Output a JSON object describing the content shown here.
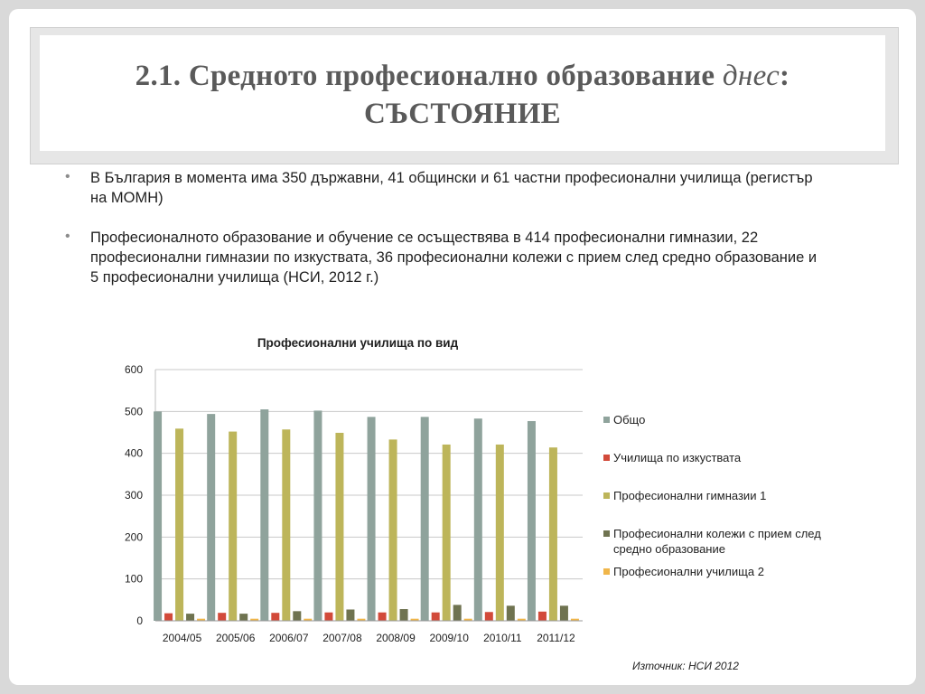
{
  "slide": {
    "title_line1_main": "2.1. Средното професионално образование ",
    "title_line1_em": "днес",
    "title_line1_end": ":",
    "title_line2": "СЪСТОЯНИЕ",
    "bullets": [
      "В България в момента има 350 държавни, 41 общински и 61 частни професионални училища (регистър  на МОМН)",
      "Професионалното образование  и обучение се осъществява в 414 професионални гимназии, 22 професионални гимназии по изкуствата, 36 професионални колежи с прием след средно образование и 5 професионални училища (НСИ, 2012 г.)"
    ],
    "bullet_glyph": "•",
    "source": "Източник: НСИ 2012"
  },
  "chart_data": {
    "type": "bar",
    "title": "Професионални училища по вид",
    "categories": [
      "2004/05",
      "2005/06",
      "2006/07",
      "2007/08",
      "2008/09",
      "2009/10",
      "2010/11",
      "2011/12"
    ],
    "ylim": [
      0,
      600
    ],
    "yticks": [
      0,
      100,
      200,
      300,
      400,
      500,
      600
    ],
    "grid": true,
    "legend_position": "right",
    "series": [
      {
        "name": "Общо",
        "color": "#8fa39c",
        "values": [
          500,
          494,
          505,
          502,
          487,
          487,
          483,
          477
        ]
      },
      {
        "name": "Училища по изкуствата",
        "color": "#d24a3a",
        "values": [
          18,
          19,
          19,
          20,
          20,
          20,
          21,
          22
        ]
      },
      {
        "name": "Професионални гимназии 1",
        "color": "#bdb55a",
        "values": [
          459,
          452,
          457,
          449,
          433,
          421,
          421,
          414
        ]
      },
      {
        "name": "Професионални колежи с прием след средно образование",
        "color": "#6f7350",
        "values": [
          17,
          17,
          23,
          27,
          28,
          38,
          36,
          36
        ]
      },
      {
        "name": "Професионални училища 2",
        "color": "#f0b64a",
        "values": [
          5,
          5,
          5,
          5,
          5,
          5,
          5,
          5
        ]
      }
    ]
  }
}
